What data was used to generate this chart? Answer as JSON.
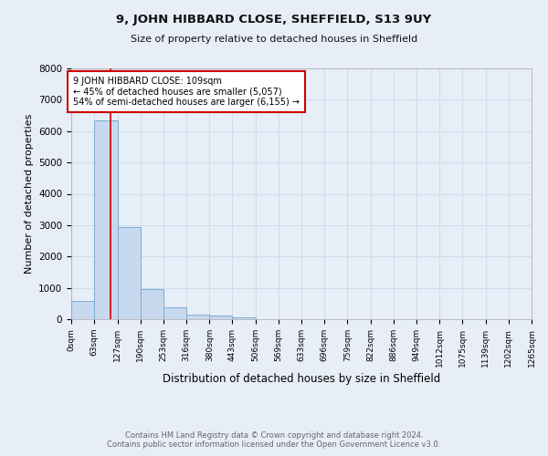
{
  "title": "9, JOHN HIBBARD CLOSE, SHEFFIELD, S13 9UY",
  "subtitle": "Size of property relative to detached houses in Sheffield",
  "xlabel": "Distribution of detached houses by size in Sheffield",
  "ylabel": "Number of detached properties",
  "footer_line1": "Contains HM Land Registry data © Crown copyright and database right 2024.",
  "footer_line2": "Contains public sector information licensed under the Open Government Licence v3.0.",
  "annotation_line1": "9 JOHN HIBBARD CLOSE: 109sqm",
  "annotation_line2": "← 45% of detached houses are smaller (5,057)",
  "annotation_line3": "54% of semi-detached houses are larger (6,155) →",
  "property_size": 109,
  "bin_edges": [
    0,
    63,
    127,
    190,
    253,
    316,
    380,
    443,
    506,
    569,
    633,
    696,
    759,
    822,
    886,
    949,
    1012,
    1075,
    1139,
    1202,
    1265
  ],
  "bar_heights": [
    575,
    6350,
    2950,
    970,
    365,
    155,
    105,
    55,
    0,
    0,
    0,
    0,
    0,
    0,
    0,
    0,
    0,
    0,
    0,
    0
  ],
  "bar_color": "#c8d8ee",
  "bar_edge_color": "#7aaed0",
  "vline_color": "#cc0000",
  "vline_x": 109,
  "ylim": [
    0,
    8000
  ],
  "yticks": [
    0,
    1000,
    2000,
    3000,
    4000,
    5000,
    6000,
    7000,
    8000
  ],
  "grid_color": "#d0dcea",
  "annotation_box_edge_color": "#cc0000",
  "annotation_box_face_color": "#ffffff",
  "background_color": "#e8eef8",
  "plot_bg_color": "#e8eef8"
}
